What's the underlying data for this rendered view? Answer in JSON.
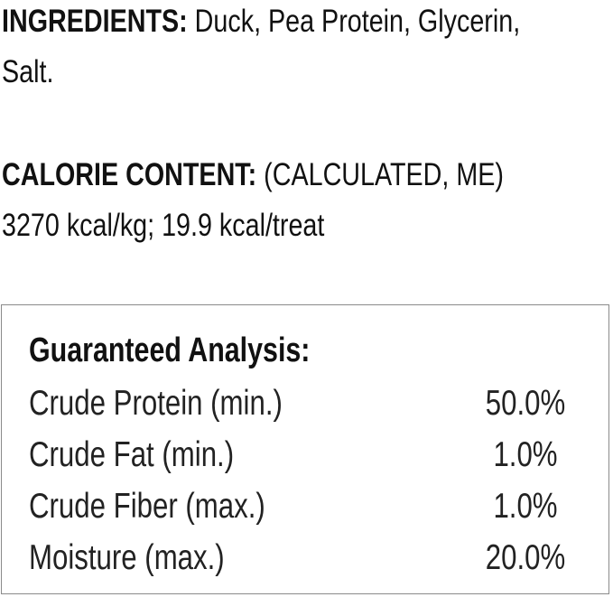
{
  "ingredients": {
    "label": "INGREDIENTS:",
    "text": " Duck, Pea Protein, Glycerin,",
    "text2": "Salt."
  },
  "calorie": {
    "label": "CALORIE CONTENT:",
    "text": " (CALCULATED, ME)",
    "text2": "3270 kcal/kg; 19.9 kcal/treat"
  },
  "analysis": {
    "title": "Guaranteed Analysis:",
    "rows": [
      {
        "label": "Crude Protein (min.)",
        "value": "50.0%"
      },
      {
        "label": "Crude Fat (min.)",
        "value": "1.0%"
      },
      {
        "label": "Crude Fiber (max.)",
        "value": "1.0%"
      },
      {
        "label": "Moisture (max.)",
        "value": "20.0%"
      }
    ]
  }
}
